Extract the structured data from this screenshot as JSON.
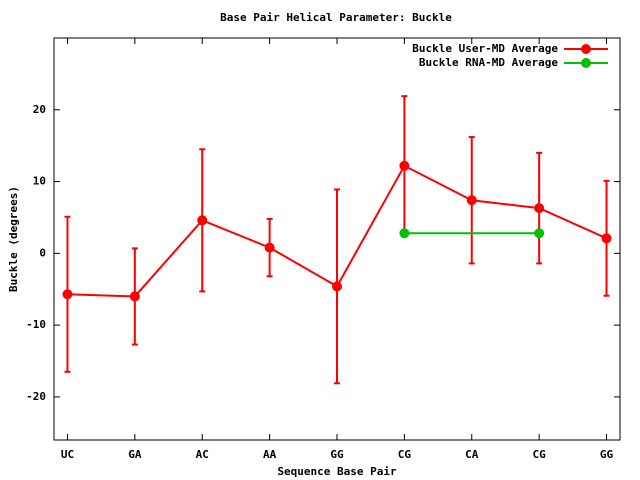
{
  "chart_data": {
    "type": "line",
    "title": "Base Pair Helical Parameter: Buckle",
    "xlabel": "Sequence Base Pair",
    "ylabel": "Buckle (degrees)",
    "x": [
      0,
      1,
      2,
      3,
      4,
      5,
      6,
      7,
      8
    ],
    "xlim": [
      -0.2,
      8.2
    ],
    "xticks": [
      {
        "value": 0,
        "label": "UC"
      },
      {
        "value": 1,
        "label": "GA"
      },
      {
        "value": 2,
        "label": "AC"
      },
      {
        "value": 3,
        "label": "AA"
      },
      {
        "value": 4,
        "label": "GG"
      },
      {
        "value": 5,
        "label": "CG"
      },
      {
        "value": 6,
        "label": "CA"
      },
      {
        "value": 7,
        "label": "CG"
      },
      {
        "value": 8,
        "label": "GG"
      }
    ],
    "ylim": [
      -26,
      30
    ],
    "yticks": [
      -20,
      -10,
      0,
      10,
      20
    ],
    "legend": "upper right",
    "series": [
      {
        "name": "Buckle User-MD Average",
        "color": "#ff0000",
        "values": [
          -5.7,
          -6.0,
          4.6,
          0.8,
          -4.6,
          12.2,
          7.4,
          6.3,
          2.1
        ],
        "errors": [
          10.8,
          6.7,
          9.9,
          4.0,
          13.5,
          9.7,
          8.8,
          7.7,
          8.0
        ]
      },
      {
        "name": "Buckle RNA-MD Average",
        "color": "#00c000",
        "x": [
          5,
          7
        ],
        "values": [
          2.8,
          2.8
        ]
      }
    ]
  }
}
